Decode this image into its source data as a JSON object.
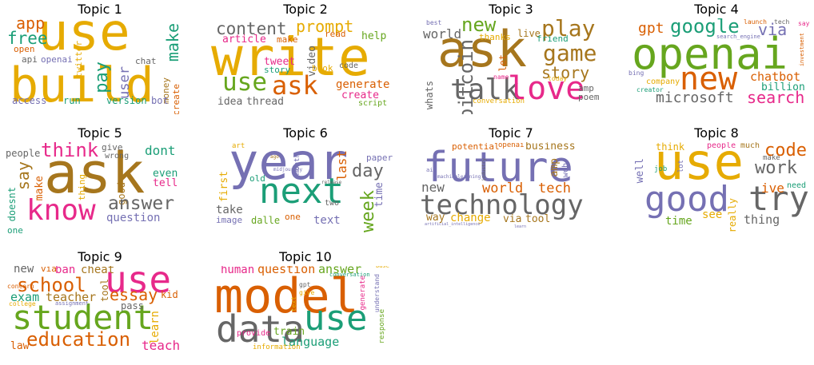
{
  "palette": {
    "mustard": "#E6AB02",
    "orange": "#D95F02",
    "teal": "#1B9E77",
    "purple": "#7570B3",
    "magenta": "#E7298A",
    "green": "#66A61E",
    "brown": "#A6761D",
    "gray": "#666666"
  },
  "topics": [
    {
      "title": "Topic 1",
      "words": [
        "use",
        "build",
        "app",
        "free",
        "make",
        "pay",
        "user",
        "twitter",
        "open",
        "api",
        "openai",
        "chat",
        "money",
        "create",
        "access",
        "run",
        "version",
        "bot"
      ]
    },
    {
      "title": "Topic 2",
      "words": [
        "write",
        "content",
        "prompt",
        "article",
        "make",
        "help",
        "use",
        "ask",
        "tweet",
        "story",
        "video",
        "read",
        "book",
        "code",
        "generate",
        "create",
        "idea",
        "thread",
        "script"
      ]
    },
    {
      "title": "Topic 3",
      "words": [
        "ask",
        "new",
        "play",
        "game",
        "bitcoin",
        "world",
        "thanks",
        "live",
        "friend",
        "best",
        "talk",
        "love",
        "story",
        "let",
        "name",
        "today",
        "amp",
        "poem",
        "whats",
        "conversation"
      ]
    },
    {
      "title": "Topic 4",
      "words": [
        "openai",
        "new",
        "google",
        "gpt",
        "via",
        "launch",
        "tech",
        "say",
        "search_engine",
        "investment",
        "chatbot",
        "billion",
        "bing",
        "company",
        "creator",
        "microsoft",
        "search"
      ]
    },
    {
      "title": "Topic 5",
      "words": [
        "ask",
        "know",
        "think",
        "people",
        "give",
        "dont",
        "wrong",
        "say",
        "make",
        "thing",
        "good",
        "even",
        "tell",
        "answer",
        "question",
        "doesnt",
        "one"
      ]
    },
    {
      "title": "Topic 6",
      "words": [
        "year",
        "next",
        "art",
        "ago",
        "month",
        "midjourney",
        "first",
        "old",
        "last",
        "day",
        "paper",
        "release",
        "take",
        "image",
        "dalle",
        "one",
        "two",
        "text",
        "week",
        "time"
      ]
    },
    {
      "title": "Topic 7",
      "words": [
        "future",
        "technology",
        "potential",
        "openai",
        "business",
        "ai",
        "industry",
        "machinelearning",
        "amp",
        "web",
        "new",
        "world",
        "tech",
        "way",
        "change",
        "via",
        "tool",
        "artificial_intelligence",
        "learn"
      ]
    },
    {
      "title": "Topic 8",
      "words": [
        "use",
        "good",
        "try",
        "think",
        "people",
        "much",
        "code",
        "work",
        "well",
        "job",
        "lot",
        "make",
        "ive",
        "need",
        "time",
        "see",
        "really",
        "thing"
      ]
    },
    {
      "title": "Topic 9",
      "words": [
        "student",
        "use",
        "new",
        "via",
        "ban",
        "cheat",
        "school",
        "essay",
        "tool",
        "kid",
        "concern",
        "exam",
        "teacher",
        "pass",
        "college",
        "assignment",
        "education",
        "learn",
        "teach",
        "law"
      ]
    },
    {
      "title": "Topic 10",
      "words": [
        "model",
        "data",
        "use",
        "human",
        "question",
        "answer",
        "base",
        "conversation",
        "gpt",
        "give",
        "text",
        "generate",
        "understand",
        "provide",
        "train",
        "language",
        "information",
        "response"
      ]
    }
  ]
}
